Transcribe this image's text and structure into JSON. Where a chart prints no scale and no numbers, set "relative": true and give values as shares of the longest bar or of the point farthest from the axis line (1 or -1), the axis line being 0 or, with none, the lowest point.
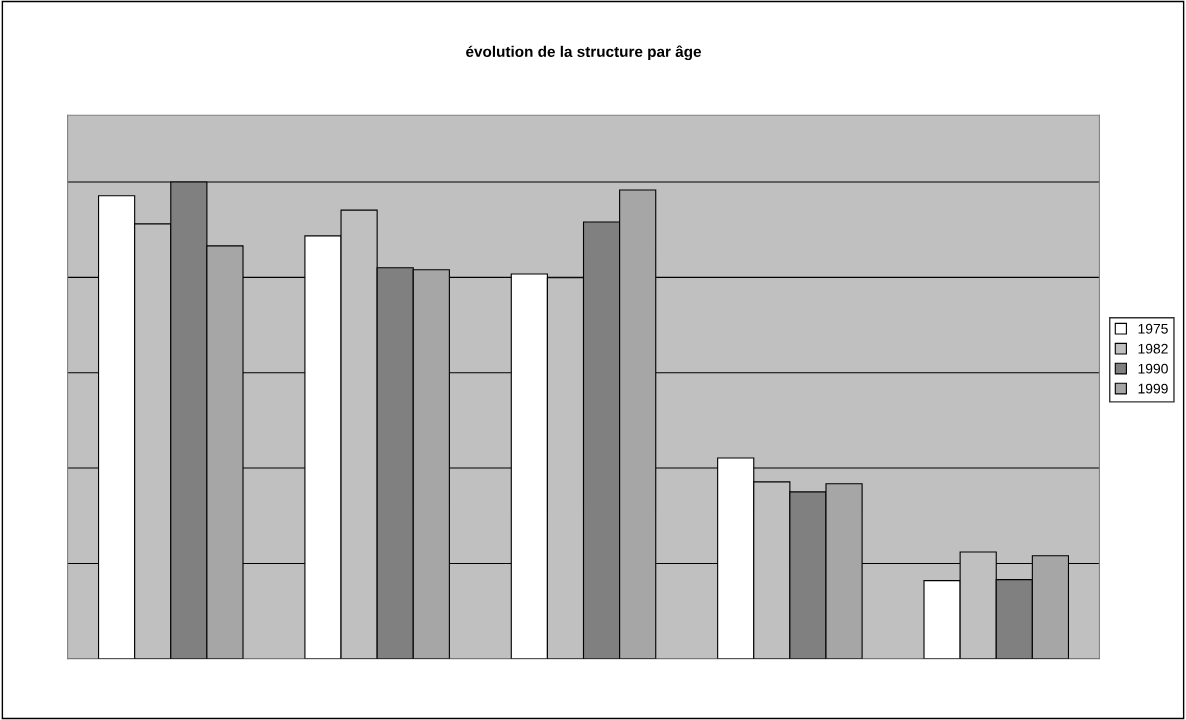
{
  "chart_data": {
    "type": "bar",
    "title": "évolution de la structure par âge",
    "relative": true,
    "categories": [
      null,
      null,
      null,
      null,
      null
    ],
    "series": [
      {
        "name": "1975",
        "color": "#ffffff",
        "values": [
          0.971,
          0.887,
          0.807,
          0.421,
          0.164
        ]
      },
      {
        "name": "1982",
        "color": "#c0c0c0",
        "values": [
          0.912,
          0.941,
          0.799,
          0.371,
          0.224
        ]
      },
      {
        "name": "1990",
        "color": "#808080",
        "values": [
          1,
          0.82,
          0.916,
          0.35,
          0.166
        ]
      },
      {
        "name": "1999",
        "color": "#a6a6a6",
        "values": [
          0.866,
          0.816,
          0.983,
          0.367,
          0.216
        ]
      }
    ],
    "grid": "y",
    "legend": "right"
  }
}
